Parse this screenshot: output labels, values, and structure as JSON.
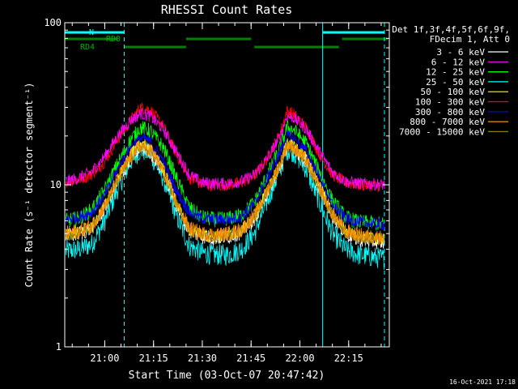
{
  "chart_data": {
    "type": "line",
    "title": "RHESSI Count Rates",
    "xlabel": "Start Time (03-Oct-07 20:47:42)",
    "ylabel": "Count Rate (s⁻¹ detector segment⁻¹)",
    "y_scale": "log",
    "ylim": [
      1,
      100
    ],
    "xlim": [
      "20:47:42",
      "22:27:30"
    ],
    "grid": false,
    "legend_position": "right",
    "y_ticks": [
      "1",
      "10",
      "100"
    ],
    "x_ticks": [
      "21:00",
      "21:15",
      "21:30",
      "21:45",
      "22:00",
      "22:15"
    ],
    "legend_header": [
      "Det 1f,3f,4f,5f,6f,9f,",
      "FDecim 1, Att 0"
    ],
    "timestamp": "16-Oct-2021 17:18",
    "x": [
      "20:48",
      "20:52",
      "20:56",
      "21:00",
      "21:04",
      "21:08",
      "21:11",
      "21:14",
      "21:18",
      "21:22",
      "21:26",
      "21:30",
      "21:34",
      "21:38",
      "21:42",
      "21:46",
      "21:50",
      "21:54",
      "21:56",
      "21:58",
      "22:02",
      "22:06",
      "22:10",
      "22:14",
      "22:18",
      "22:22",
      "22:26"
    ],
    "series": [
      {
        "name": "3 - 6 keV",
        "color": "#ffffff",
        "values": [
          4.8,
          5.0,
          5.4,
          7.2,
          10.5,
          14.5,
          17.0,
          16.0,
          12.0,
          7.5,
          5.2,
          4.8,
          4.7,
          4.8,
          5.1,
          6.2,
          9.0,
          13.0,
          17.5,
          17.0,
          14.0,
          9.5,
          6.5,
          5.0,
          4.6,
          4.5,
          4.4
        ]
      },
      {
        "name": "6 - 12 keV",
        "color": "#ff00ff",
        "values": [
          10.5,
          11.0,
          12.0,
          15.0,
          20.0,
          25.0,
          27.5,
          26.5,
          22.0,
          16.0,
          11.5,
          10.3,
          10.2,
          10.2,
          10.5,
          11.5,
          14.5,
          20.0,
          26.5,
          26.0,
          22.0,
          16.0,
          12.0,
          10.5,
          10.2,
          10.1,
          10.0
        ]
      },
      {
        "name": "12 - 25 keV",
        "color": "#00ff00",
        "values": [
          6.0,
          6.2,
          7.0,
          9.3,
          13.5,
          19.0,
          22.5,
          21.5,
          17.0,
          11.0,
          7.2,
          6.3,
          6.1,
          6.2,
          6.5,
          7.8,
          11.5,
          17.0,
          22.5,
          22.0,
          18.0,
          12.0,
          8.0,
          6.3,
          5.9,
          5.8,
          5.7
        ]
      },
      {
        "name": "25 - 50 keV",
        "color": "#00ffff",
        "values": [
          3.9,
          4.0,
          4.3,
          6.0,
          9.5,
          14.0,
          16.5,
          15.5,
          11.0,
          6.5,
          4.2,
          3.8,
          3.7,
          3.7,
          4.0,
          5.0,
          8.0,
          12.5,
          16.5,
          16.0,
          12.5,
          7.8,
          5.0,
          4.0,
          3.7,
          3.6,
          3.5
        ]
      },
      {
        "name": "50 - 100 keV",
        "color": "#ffff00",
        "values": [
          4.9,
          5.1,
          5.5,
          7.5,
          11.0,
          15.5,
          18.0,
          17.0,
          12.5,
          7.8,
          5.3,
          4.9,
          4.8,
          4.9,
          5.2,
          6.3,
          9.3,
          13.5,
          18.0,
          17.5,
          14.5,
          9.8,
          6.7,
          5.2,
          4.8,
          4.7,
          4.6
        ]
      },
      {
        "name": "100 - 300 keV",
        "color": "#ff0000",
        "values": [
          10.4,
          10.8,
          11.6,
          14.0,
          19.0,
          25.0,
          30.0,
          29.0,
          23.0,
          15.5,
          11.0,
          10.0,
          9.9,
          10.0,
          10.3,
          11.3,
          14.5,
          21.0,
          28.5,
          27.5,
          22.5,
          15.5,
          11.5,
          10.3,
          10.0,
          9.9,
          9.8
        ]
      },
      {
        "name": "300 - 800 keV",
        "color": "#0000ff",
        "values": [
          6.1,
          6.3,
          6.8,
          8.6,
          12.5,
          17.0,
          19.5,
          18.5,
          14.0,
          9.2,
          6.8,
          6.2,
          6.1,
          6.1,
          6.4,
          7.6,
          11.0,
          16.0,
          20.0,
          19.5,
          16.0,
          11.0,
          7.6,
          6.2,
          5.9,
          5.8,
          5.7
        ]
      },
      {
        "name": "800 - 7000 keV",
        "color": "#ff8c00",
        "values": [
          5.0,
          5.2,
          5.6,
          7.4,
          10.8,
          15.0,
          17.5,
          16.5,
          12.3,
          7.7,
          5.4,
          5.0,
          4.9,
          5.0,
          5.3,
          6.4,
          9.2,
          13.5,
          17.5,
          17.0,
          14.0,
          9.6,
          6.6,
          5.2,
          4.9,
          4.8,
          4.7
        ]
      },
      {
        "name": "7000 - 15000 keV",
        "color": "#8b7d00",
        "values": [
          4.9,
          5.1,
          5.5,
          7.3,
          10.7,
          14.8,
          17.2,
          16.2,
          12.1,
          7.6,
          5.3,
          4.9,
          4.8,
          4.9,
          5.2,
          6.3,
          9.1,
          13.3,
          17.3,
          16.8,
          13.8,
          9.5,
          6.5,
          5.1,
          4.8,
          4.7,
          4.6
        ]
      }
    ],
    "annotations": {
      "attenuator_labels": [
        "RD0",
        "RD4"
      ],
      "night_label": "N",
      "bars_cyan": [
        [
          "20:47:42",
          "21:06"
        ],
        [
          "22:07",
          "22:26"
        ]
      ],
      "bars_green_rd0": [
        [
          "20:47:42",
          "21:04"
        ],
        [
          "21:25",
          "21:45"
        ],
        [
          "22:13",
          "22:27"
        ]
      ],
      "bars_green_rd4": [
        [
          "21:06",
          "21:25"
        ],
        [
          "21:46",
          "22:12"
        ]
      ],
      "solid_cyan_lines": [
        "20:47:42",
        "22:07"
      ],
      "dashed_cyan_lines": [
        "21:06",
        "22:26"
      ]
    },
    "colors": {
      "axes": "#ffffff",
      "background": "#000000",
      "night": "#00ffff",
      "rd_bar": "#008000"
    }
  }
}
